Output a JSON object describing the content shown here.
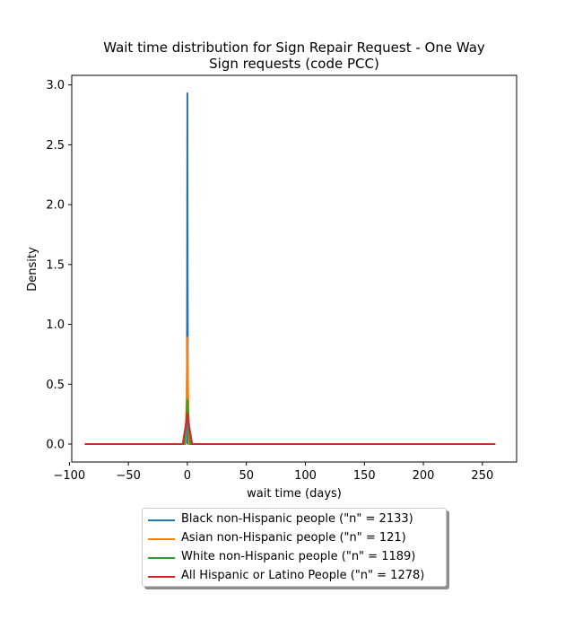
{
  "chart_data": {
    "type": "line",
    "title": "Wait time distribution  for Sign Repair Request - One Way\nSign requests (code PCC)",
    "xlabel": "wait time (days)",
    "ylabel": "Density",
    "xlim": [
      -98,
      279
    ],
    "ylim": [
      -0.15,
      3.08
    ],
    "xticks": [
      -100,
      -50,
      0,
      50,
      100,
      150,
      200,
      250
    ],
    "xtick_labels": [
      "−100",
      "−50",
      "0",
      "50",
      "100",
      "150",
      "200",
      "250"
    ],
    "yticks": [
      0.0,
      0.5,
      1.0,
      1.5,
      2.0,
      2.5,
      3.0
    ],
    "ytick_labels": [
      "0.0",
      "0.5",
      "1.0",
      "1.5",
      "2.0",
      "2.5",
      "3.0"
    ],
    "grid": false,
    "legend_position": "below",
    "series": [
      {
        "name": "Black non-Hispanic people (\"n\" = 2133)",
        "color": "#1f77b4",
        "x": [
          -1,
          -0.5,
          -0.2,
          0,
          0.2,
          0.5,
          1,
          5
        ],
        "y": [
          0,
          0.02,
          1.5,
          2.93,
          1.5,
          0.02,
          0,
          0
        ]
      },
      {
        "name": "Asian non-Hispanic people (\"n\" = 121)",
        "color": "#ff7f0e",
        "x": [
          -37,
          -1.5,
          -0.6,
          0,
          0.6,
          1.5,
          115
        ],
        "y": [
          0,
          0,
          0.45,
          0.89,
          0.45,
          0,
          0
        ]
      },
      {
        "name": "White non-Hispanic people (\"n\" = 1189)",
        "color": "#2ca02c",
        "x": [
          -38,
          -2.5,
          -1,
          0,
          1,
          2.5,
          113
        ],
        "y": [
          0,
          0,
          0.19,
          0.37,
          0.19,
          0,
          0
        ]
      },
      {
        "name": "All Hispanic or Latino People (\"n\" = 1278)",
        "color": "#d62728",
        "x": [
          -87,
          -4,
          -2,
          0,
          2,
          4,
          261
        ],
        "y": [
          0,
          0,
          0.12,
          0.26,
          0.12,
          0,
          0
        ]
      }
    ]
  }
}
